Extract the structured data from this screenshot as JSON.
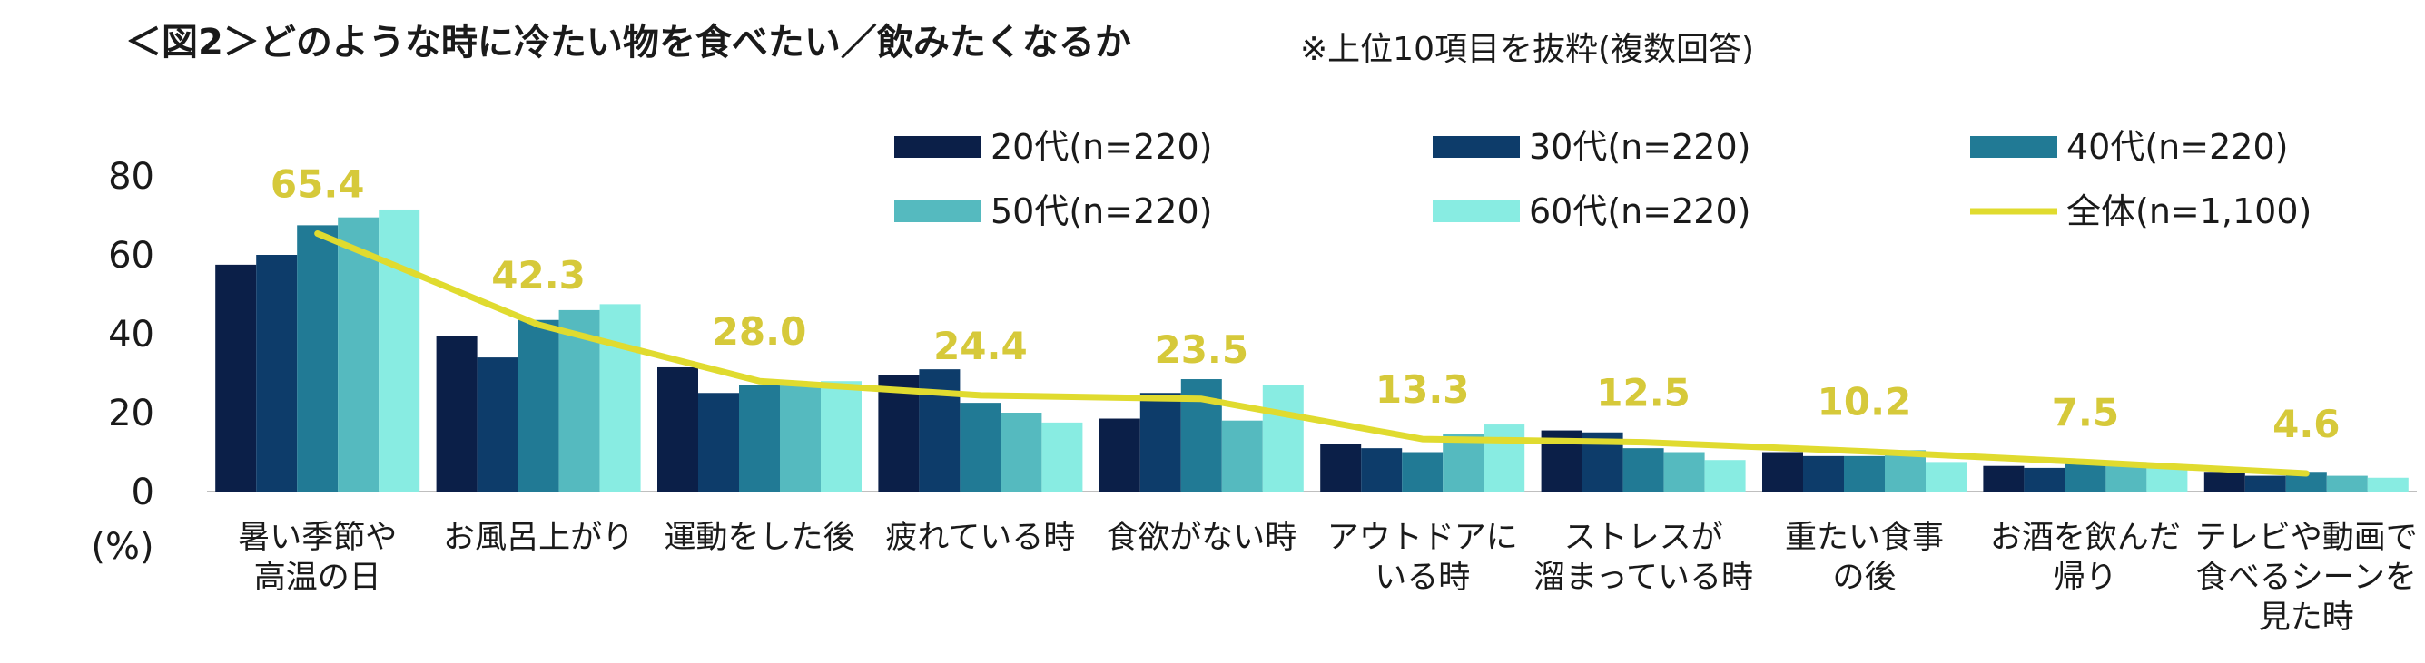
{
  "chart_data": {
    "type": "bar",
    "title": "＜図2＞どのような時に冷たい物を食べたい／飲みたくなるか",
    "subtitle": "※上位10項目を抜粋(複数回答)",
    "ylabel": "(%)",
    "ylim": [
      0,
      80
    ],
    "yticks": [
      "0",
      "20",
      "40",
      "60",
      "80"
    ],
    "grid": false,
    "legend_position": "top",
    "categories": [
      [
        "暑い季節や",
        "高温の日"
      ],
      [
        "お風呂上がり"
      ],
      [
        "運動をした後"
      ],
      [
        "疲れている時"
      ],
      [
        "食欲がない時"
      ],
      [
        "アウトドアに",
        "いる時"
      ],
      [
        "ストレスが",
        "溜まっている時"
      ],
      [
        "重たい食事",
        "の後"
      ],
      [
        "お酒を飲んだ",
        "帰り"
      ],
      [
        "テレビや動画で",
        "食べるシーンを",
        "見た時"
      ]
    ],
    "series": [
      {
        "name": "20代(n=220)",
        "color": "#0b1f48",
        "values": [
          57.5,
          39.5,
          31.5,
          29.5,
          18.5,
          12.0,
          15.5,
          10.0,
          6.5,
          5.0
        ]
      },
      {
        "name": "30代(n=220)",
        "color": "#0d3c6a",
        "values": [
          60.0,
          34.0,
          25.0,
          31.0,
          25.0,
          11.0,
          15.0,
          9.0,
          6.0,
          4.0
        ]
      },
      {
        "name": "40代(n=220)",
        "color": "#217a95",
        "values": [
          67.5,
          43.5,
          27.0,
          22.5,
          28.5,
          10.0,
          11.0,
          9.0,
          7.0,
          5.0
        ]
      },
      {
        "name": "50代(n=220)",
        "color": "#55babf",
        "values": [
          69.5,
          46.0,
          27.0,
          20.0,
          18.0,
          14.5,
          10.0,
          10.5,
          7.5,
          4.0
        ]
      },
      {
        "name": "60代(n=220)",
        "color": "#88ece2",
        "values": [
          71.5,
          47.5,
          28.0,
          17.5,
          27.0,
          17.0,
          8.0,
          7.5,
          6.5,
          3.5
        ]
      }
    ],
    "total": {
      "name": "全体(n=1,100)",
      "color": "#e0db2f",
      "type": "line",
      "values": [
        65.4,
        42.3,
        28.0,
        24.4,
        23.5,
        13.3,
        12.5,
        10.2,
        7.5,
        4.6
      ],
      "labels": [
        "65.4",
        "42.3",
        "28.0",
        "24.4",
        "23.5",
        "13.3",
        "12.5",
        "10.2",
        "7.5",
        "4.6"
      ]
    }
  }
}
